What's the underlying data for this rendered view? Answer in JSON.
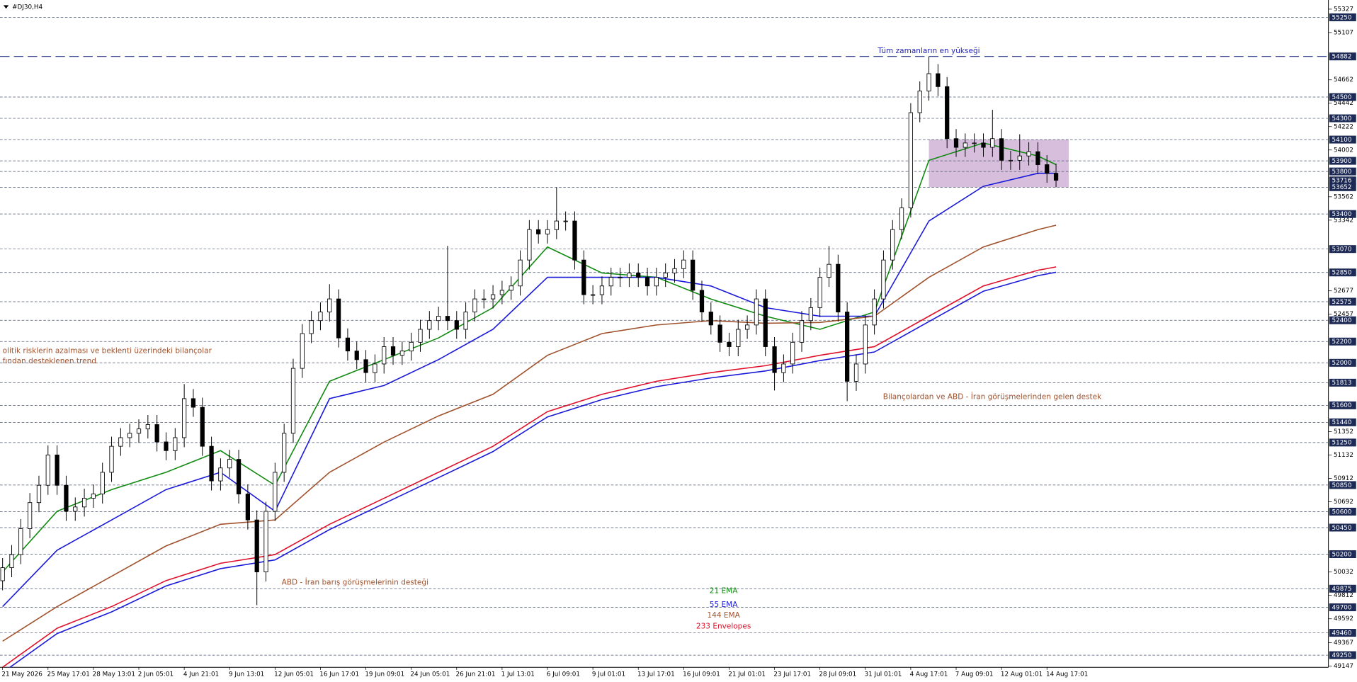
{
  "chart_data": {
    "type": "candlestick",
    "symbol": "#DJ30,H4",
    "categories": [
      "21 May 2026",
      null,
      null,
      null,
      null,
      "25 May 17:01",
      null,
      null,
      null,
      null,
      "28 May 13:01",
      null,
      null,
      null,
      null,
      "2 Jun 05:01",
      null,
      null,
      null,
      null,
      "4 Jun 21:01",
      null,
      null,
      null,
      null,
      "9 Jun 13:01",
      null,
      null,
      null,
      null,
      "12 Jun 05:01",
      null,
      null,
      null,
      null,
      "16 Jun 17:01",
      null,
      null,
      null,
      null,
      "19 Jun 09:01",
      null,
      null,
      null,
      null,
      "24 Jun 05:01",
      null,
      null,
      null,
      null,
      "26 Jun 21:01",
      null,
      null,
      null,
      null,
      "1 Jul 13:01",
      null,
      null,
      null,
      null,
      "6 Jul 09:01",
      null,
      null,
      null,
      null,
      "9 Jul 01:01",
      null,
      null,
      null,
      null,
      "13 Jul 17:01",
      null,
      null,
      null,
      null,
      "16 Jul 09:01",
      null,
      null,
      null,
      null,
      "21 Jul 01:01",
      null,
      null,
      null,
      null,
      "23 Jul 17:01",
      null,
      null,
      null,
      null,
      "28 Jul 09:01",
      null,
      null,
      null,
      null,
      "31 Jul 01:01",
      null,
      null,
      null,
      null,
      "4 Aug 17:01",
      null,
      null,
      null,
      null,
      "7 Aug 09:01",
      null,
      null,
      null,
      null,
      "12 Aug 01:01",
      null,
      null,
      null,
      null,
      "14 Aug 17:01",
      null
    ],
    "open": [
      49950,
      50073,
      50196,
      50440,
      50685,
      50848,
      51133,
      50848,
      50603,
      50644,
      50726,
      50766,
      50970,
      51215,
      51296,
      51337,
      51378,
      51419,
      51256,
      51174,
      51296,
      51663,
      51582,
      51215,
      50889,
      51011,
      51092,
      50766,
      50522,
      50033,
      50603,
      50970,
      51337,
      51948,
      52275,
      52397,
      52478,
      52601,
      52234,
      52111,
      52030,
      51908,
      51989,
      52152,
      52071,
      52111,
      52193,
      52315,
      52397,
      52438,
      52397,
      52315,
      52478,
      52601,
      52601,
      52641,
      52682,
      52723,
      52967,
      53253,
      53212,
      53253,
      53334,
      53334,
      52967,
      52641,
      52641,
      52723,
      52804,
      52804,
      52845,
      52804,
      52723,
      52804,
      52845,
      52886,
      52967,
      52682,
      52478,
      52356,
      52193,
      52152,
      52315,
      52356,
      52601,
      52152,
      51908,
      51989,
      52193,
      52397,
      52519,
      52804,
      52927,
      52478,
      51826,
      51989,
      52356,
      52601,
      52967,
      53253,
      53457,
      54353,
      54557,
      54720,
      54598,
      54109,
      54027,
      54068,
      54068,
      54027,
      54109,
      53905,
      53905,
      53946,
      53986,
      53864,
      53783
    ],
    "high": [
      50163,
      50286,
      50530,
      50775,
      50938,
      51223,
      51223,
      50938,
      50734,
      50816,
      50856,
      51060,
      51305,
      51386,
      51427,
      51468,
      51509,
      51509,
      51346,
      51386,
      51800,
      51753,
      51672,
      51305,
      51101,
      51182,
      51182,
      50856,
      50612,
      50693,
      51060,
      51427,
      52038,
      52365,
      52487,
      52568,
      52740,
      52691,
      52324,
      52201,
      52120,
      52079,
      52242,
      52242,
      52201,
      52283,
      52405,
      52487,
      52528,
      53100,
      52487,
      52568,
      52691,
      52691,
      52731,
      52772,
      52813,
      53057,
      53343,
      53343,
      53343,
      53650,
      53424,
      53424,
      53057,
      52731,
      52813,
      52894,
      52894,
      52935,
      52935,
      52894,
      52894,
      52935,
      52976,
      53057,
      53057,
      52772,
      52568,
      52446,
      52283,
      52405,
      52446,
      52691,
      52691,
      52242,
      52079,
      52283,
      52487,
      52609,
      52894,
      53100,
      53017,
      52568,
      52079,
      52446,
      52691,
      53057,
      53343,
      53547,
      54443,
      54647,
      54882,
      54810,
      54688,
      54199,
      54158,
      54158,
      54158,
      54380,
      54199,
      53995,
      54150,
      54076,
      54076,
      53954,
      53873
    ],
    "low": [
      49860,
      49983,
      50106,
      50350,
      50595,
      50758,
      50758,
      50513,
      50513,
      50554,
      50636,
      50676,
      50880,
      51125,
      51206,
      51247,
      51288,
      51166,
      51084,
      51084,
      51206,
      51492,
      51125,
      50799,
      50799,
      50921,
      50676,
      50432,
      49720,
      49943,
      50513,
      50880,
      51247,
      51858,
      52185,
      52307,
      52388,
      52144,
      52021,
      51940,
      51818,
      51818,
      51899,
      51981,
      51981,
      52021,
      52103,
      52225,
      52307,
      52307,
      52225,
      52225,
      52388,
      52511,
      52511,
      52551,
      52592,
      52633,
      52877,
      53122,
      53122,
      53163,
      53244,
      52877,
      52551,
      52551,
      52551,
      52633,
      52714,
      52714,
      52714,
      52633,
      52633,
      52714,
      52755,
      52796,
      52592,
      52388,
      52266,
      52103,
      52062,
      52062,
      52225,
      52266,
      52062,
      51740,
      51818,
      51899,
      52103,
      52307,
      52429,
      52714,
      52388,
      51640,
      51736,
      51899,
      52266,
      52511,
      52877,
      53163,
      53367,
      54263,
      54467,
      54508,
      54019,
      53937,
      53937,
      53978,
      53937,
      53937,
      53815,
      53815,
      53815,
      53856,
      53774,
      53693,
      53652
    ],
    "close": [
      50073,
      50196,
      50440,
      50685,
      50848,
      51133,
      50848,
      50603,
      50644,
      50726,
      50766,
      50970,
      51215,
      51296,
      51337,
      51378,
      51419,
      51256,
      51174,
      51296,
      51663,
      51582,
      51215,
      50889,
      51011,
      51092,
      50766,
      50522,
      50033,
      50603,
      50970,
      51337,
      51948,
      52275,
      52397,
      52478,
      52601,
      52234,
      52111,
      52030,
      51908,
      51989,
      52152,
      52071,
      52111,
      52193,
      52315,
      52397,
      52438,
      52397,
      52315,
      52478,
      52601,
      52601,
      52641,
      52682,
      52723,
      52967,
      53253,
      53212,
      53253,
      53334,
      53334,
      52967,
      52641,
      52641,
      52723,
      52804,
      52804,
      52845,
      52804,
      52723,
      52804,
      52845,
      52886,
      52967,
      52682,
      52478,
      52356,
      52193,
      52152,
      52315,
      52356,
      52601,
      52152,
      51908,
      51989,
      52193,
      52397,
      52519,
      52804,
      52927,
      52478,
      51826,
      51989,
      52356,
      52601,
      52967,
      53253,
      53457,
      54353,
      54557,
      54720,
      54598,
      54109,
      54027,
      54068,
      54068,
      54027,
      54109,
      53905,
      53905,
      53946,
      53986,
      53864,
      53783,
      53717
    ],
    "ylim": [
      49136,
      55413
    ],
    "yticks": [
      55327,
      55107,
      54662,
      54442,
      54222,
      54002,
      53562,
      53342,
      52677,
      52457,
      51352,
      51132,
      50912,
      50692,
      50032,
      49812,
      49592,
      49367,
      49147
    ],
    "levels": [
      55250,
      54500,
      54300,
      54100,
      53900,
      53800,
      53652,
      53400,
      53070,
      52850,
      52575,
      52400,
      52200,
      52000,
      51813,
      51600,
      51440,
      51250,
      50850,
      50600,
      50450,
      50200,
      49875,
      49700,
      49460,
      49250
    ],
    "ath_level": 54882,
    "current_price": 53716,
    "series": [
      {
        "name": "21 EMA",
        "color": "#118a11",
        "x": [
          0,
          6,
          12,
          18,
          24,
          30,
          36,
          42,
          48,
          54,
          60,
          66,
          72,
          78,
          84,
          90,
          96,
          102,
          108,
          114,
          116
        ],
        "values": [
          50033,
          50603,
          50807,
          50970,
          51174,
          50848,
          51826,
          52030,
          52234,
          52519,
          53090,
          52845,
          52804,
          52600,
          52438,
          52315,
          52478,
          53905,
          54068,
          53946,
          53864
        ]
      },
      {
        "name": "55 EMA",
        "color": "#1a1ad8",
        "x": [
          0,
          6,
          12,
          18,
          24,
          30,
          36,
          42,
          48,
          54,
          60,
          66,
          72,
          78,
          84,
          90,
          96,
          102,
          108,
          114,
          116
        ],
        "values": [
          49707,
          50237,
          50522,
          50807,
          50970,
          50603,
          51663,
          51786,
          52030,
          52315,
          52804,
          52804,
          52804,
          52723,
          52519,
          52438,
          52438,
          53334,
          53660,
          53783,
          53783
        ]
      },
      {
        "name": "144 EMA",
        "color": "#a0522d",
        "x": [
          0,
          6,
          12,
          18,
          24,
          30,
          36,
          42,
          48,
          54,
          60,
          66,
          72,
          78,
          84,
          90,
          96,
          102,
          108,
          114,
          116
        ],
        "values": [
          49381,
          49707,
          49992,
          50277,
          50481,
          50522,
          50970,
          51255,
          51500,
          51704,
          52071,
          52275,
          52356,
          52397,
          52372,
          52380,
          52438,
          52804,
          53090,
          53253,
          53294
        ]
      },
      {
        "name": "233 Envelopes",
        "color": "#e0102a",
        "x": [
          0,
          6,
          12,
          18,
          24,
          30,
          36,
          42,
          48,
          54,
          60,
          66,
          72,
          78,
          84,
          90,
          96,
          102,
          108,
          114,
          116
        ],
        "values": [
          49136,
          49503,
          49707,
          49951,
          50114,
          50196,
          50481,
          50726,
          50970,
          51215,
          51541,
          51704,
          51826,
          51908,
          51973,
          52071,
          52152,
          52438,
          52723,
          52870,
          52902
        ],
        "lower": [
          49086,
          49453,
          49657,
          49901,
          50064,
          50146,
          50431,
          50676,
          50920,
          51165,
          51491,
          51654,
          51776,
          51858,
          51923,
          52021,
          52102,
          52388,
          52673,
          52820,
          52852
        ],
        "lower_color": "#1a1ad8"
      }
    ],
    "zone": {
      "price_range": [
        54100,
        53652
      ],
      "index_range": [
        102,
        117.4
      ],
      "color": "#c8a8d0"
    },
    "annotations": [
      {
        "text": "Tüm zamanların en yükseği",
        "color": "#2323b8"
      },
      {
        "text": "olitik risklerin azalması ve beklenti üzerindeki bilançolar",
        "color": "#a0522d"
      },
      {
        "text": "fından desteklenen trend",
        "color": "#a0522d"
      },
      {
        "text": "Bilançolardan ve ABD - İran görüşmelerinden gelen destek",
        "color": "#a0522d"
      },
      {
        "text": "ABD - İran barış görüşmelerinin desteği",
        "color": "#a0522d"
      }
    ]
  }
}
